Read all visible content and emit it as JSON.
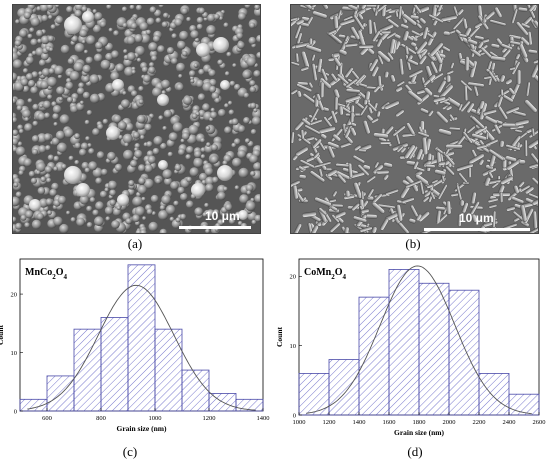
{
  "panels": {
    "a": {
      "label": "(a)",
      "scale_bar": "10 μm"
    },
    "b": {
      "label": "(b)",
      "scale_bar": "10 μm"
    },
    "c": {
      "label": "(c)"
    },
    "d": {
      "label": "(d)"
    }
  },
  "colors": {
    "bar_stroke": "#4a4aa8",
    "hatch": "#6a6ac8",
    "fit_line": "#555555"
  },
  "chart_data": [
    {
      "type": "bar",
      "title": "MnCo2O4",
      "title_parts": [
        "MnCo",
        "2",
        "O",
        "4"
      ],
      "xlabel": "Grain size (nm)",
      "ylabel": "Count",
      "xlim": [
        500,
        1400
      ],
      "ylim": [
        0,
        26
      ],
      "xticks": [
        600,
        800,
        1000,
        1200,
        1400
      ],
      "yticks": [
        0,
        10,
        20
      ],
      "bin_edges": [
        500,
        600,
        700,
        800,
        900,
        1000,
        1100,
        1200,
        1300,
        1400
      ],
      "values": [
        2,
        6,
        14,
        16,
        25,
        14,
        7,
        3,
        2
      ],
      "fit": "gaussian",
      "fit_peak_x": 930,
      "fit_peak_y": 21.5
    },
    {
      "type": "bar",
      "title": "CoMn2O4",
      "title_parts": [
        "CoMn",
        "2",
        "O",
        "4"
      ],
      "xlabel": "Grain size (nm)",
      "ylabel": "Count",
      "xlim": [
        1000,
        2600
      ],
      "ylim": [
        0,
        22.5
      ],
      "xticks": [
        1000,
        1200,
        1400,
        1600,
        1800,
        2000,
        2200,
        2400,
        2600
      ],
      "yticks": [
        0,
        10,
        20
      ],
      "bin_edges": [
        1000,
        1200,
        1400,
        1600,
        1800,
        2000,
        2200,
        2400,
        2600
      ],
      "values": [
        6,
        8,
        17,
        21,
        19,
        18,
        6,
        3
      ],
      "fit": "gaussian",
      "fit_peak_x": 1790,
      "fit_peak_y": 21.5
    }
  ]
}
